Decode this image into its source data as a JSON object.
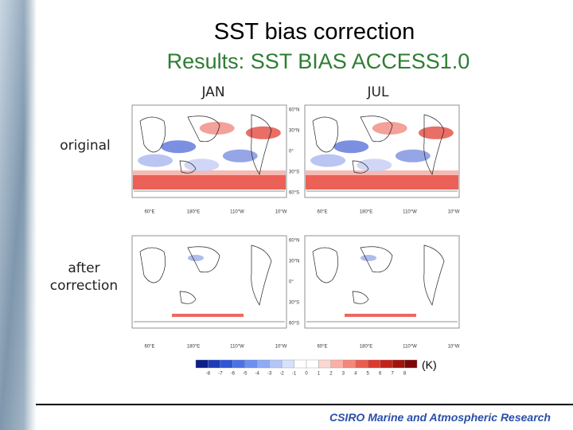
{
  "header": {
    "title": "SST bias correction",
    "subtitle": "Results: SST BIAS ACCESS1.0"
  },
  "columns": [
    "JAN",
    "JUL"
  ],
  "rows": [
    "original",
    "after correction"
  ],
  "map_axes": {
    "lat": [
      "60°N",
      "30°N",
      "0°",
      "30°S",
      "60°S"
    ],
    "lon": [
      "60°E",
      "180°E",
      "110°W",
      "10°W"
    ]
  },
  "colorbar": {
    "labels": [
      "-8",
      "-7",
      "-6",
      "-5",
      "-4",
      "-3",
      "-2",
      "-1",
      "0",
      "1",
      "2",
      "3",
      "4",
      "5",
      "6",
      "7",
      "8"
    ],
    "unit": "(K)"
  },
  "footer": "CSIRO Marine and Atmospheric Research"
}
